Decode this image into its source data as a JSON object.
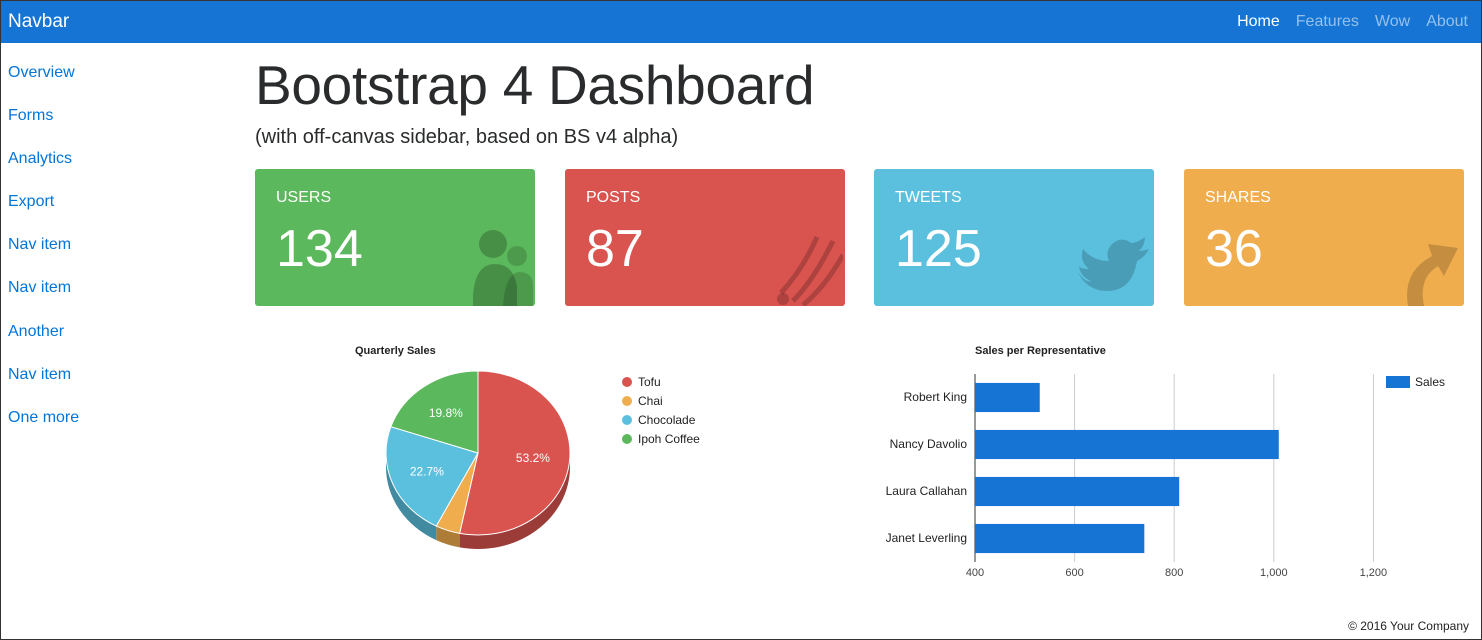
{
  "navbar": {
    "brand": "Navbar",
    "links": [
      {
        "label": "Home",
        "active": true
      },
      {
        "label": "Features",
        "active": false
      },
      {
        "label": "Wow",
        "active": false
      },
      {
        "label": "About",
        "active": false
      }
    ]
  },
  "sidebar": {
    "items": [
      {
        "label": "Overview"
      },
      {
        "label": "Forms"
      },
      {
        "label": "Analytics"
      },
      {
        "label": "Export"
      },
      {
        "label": "Nav item"
      },
      {
        "label": "Nav item"
      },
      {
        "label": "Another"
      },
      {
        "label": "Nav item"
      },
      {
        "label": "One more"
      }
    ]
  },
  "main": {
    "title": "Bootstrap 4 Dashboard",
    "subtitle": "(with off-canvas sidebar, based on BS v4 alpha)"
  },
  "cards": [
    {
      "label": "USERS",
      "value": "134",
      "color": "#5cb85c",
      "icon": "users-icon"
    },
    {
      "label": "POSTS",
      "value": "87",
      "color": "#d9534f",
      "icon": "rss-icon"
    },
    {
      "label": "TWEETS",
      "value": "125",
      "color": "#5bc0de",
      "icon": "twitter-icon"
    },
    {
      "label": "SHARES",
      "value": "36",
      "color": "#f0ad4e",
      "icon": "share-icon"
    }
  ],
  "chart_data": [
    {
      "type": "pie",
      "title": "Quarterly Sales",
      "categories": [
        "Tofu",
        "Chai",
        "Chocolade",
        "Ipoh Coffee"
      ],
      "values": [
        53.2,
        4.3,
        22.7,
        19.8
      ],
      "slice_labels": [
        "53.2%",
        "",
        "22.7%",
        "19.8%"
      ],
      "colors": [
        "#d9534f",
        "#f0ad4e",
        "#5bc0de",
        "#5cb85c"
      ],
      "legend": "right"
    },
    {
      "type": "bar",
      "orientation": "horizontal",
      "title": "Sales per Representative",
      "categories": [
        "Robert King",
        "Nancy Davolio",
        "Laura Callahan",
        "Janet Leverling"
      ],
      "series": [
        {
          "name": "Sales",
          "values": [
            530,
            1010,
            810,
            740
          ]
        }
      ],
      "xlim": [
        400,
        1400
      ],
      "xticks": [
        "400",
        "600",
        "800",
        "1,000",
        "1,200"
      ],
      "xtick_values": [
        400,
        600,
        800,
        1000,
        1200
      ],
      "color": "#1574d4",
      "grid": true,
      "legend": "top-right"
    }
  ],
  "footer": {
    "text": "© 2016 Your Company"
  }
}
